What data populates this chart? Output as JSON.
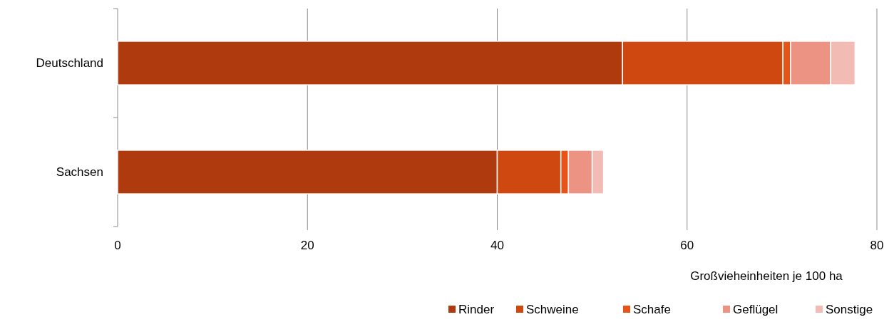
{
  "chart_data": {
    "type": "bar",
    "orientation": "horizontal",
    "stacked": true,
    "categories": [
      "Deutschland",
      "Sachsen"
    ],
    "series": [
      {
        "name": "Rinder",
        "color": "#ae3a0e",
        "values": [
          53.2,
          40.0
        ]
      },
      {
        "name": "Schweine",
        "color": "#cf4810",
        "values": [
          16.9,
          6.7
        ]
      },
      {
        "name": "Schafe",
        "color": "#e85417",
        "values": [
          0.8,
          0.8
        ]
      },
      {
        "name": "Geflügel",
        "color": "#ec9384",
        "values": [
          4.2,
          2.5
        ]
      },
      {
        "name": "Sonstige",
        "color": "#f2bcb5",
        "values": [
          2.6,
          1.2
        ]
      }
    ],
    "xlim": [
      0,
      80
    ],
    "xticks": [
      0,
      20,
      40,
      60,
      80
    ],
    "xlabel": "Großvieheinheiten je 100 ha",
    "grid": "x",
    "legend": "bottom"
  }
}
